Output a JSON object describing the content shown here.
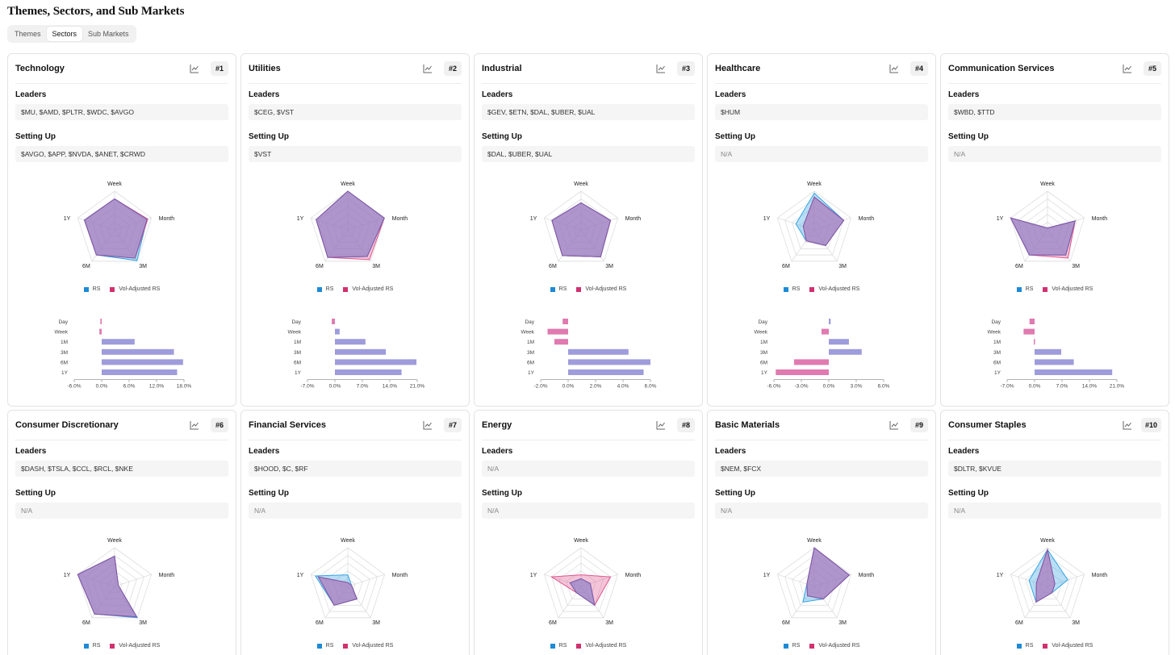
{
  "page": {
    "title": "Themes, Sectors, and Sub Markets"
  },
  "tabs": [
    {
      "label": "Themes",
      "active": false
    },
    {
      "label": "Sectors",
      "active": true
    },
    {
      "label": "Sub Markets",
      "active": false
    }
  ],
  "labels": {
    "leaders": "Leaders",
    "setting_up": "Setting Up"
  },
  "legend": {
    "rs": "RS",
    "vol_rs": "Vol-Adjusted RS"
  },
  "colors": {
    "rs": "#35a4e6",
    "vol_rs": "#e0558f",
    "bar_pos": "#9e9cdb",
    "bar_neg": "#e07ab0",
    "radar_fill": "#9b7fc6"
  },
  "radar_axes": [
    "Week",
    "Month",
    "3M",
    "6M",
    "1Y"
  ],
  "bar_periods": [
    "Day",
    "Week",
    "1M",
    "3M",
    "6M",
    "1Y"
  ],
  "chart_data": [
    {
      "type": "radar+bar",
      "title": "Technology",
      "rank": "#1",
      "leaders": "$MU, $AMD, $PLTR, $WDC, $AVGO",
      "setting_up": "$AVGO, $APP, $NVDA, $ANET, $CRWD",
      "radar_rs": [
        0.8,
        0.88,
        0.98,
        0.8,
        0.82
      ],
      "radar_vol": [
        0.8,
        0.9,
        0.9,
        0.8,
        0.82
      ],
      "bars": [
        -0.3,
        -0.5,
        7.2,
        15.8,
        17.8,
        16.5
      ],
      "xticks": [
        "-6.0%",
        "0.0%",
        "6.0%",
        "12.0%",
        "18.0%"
      ],
      "xlim": [
        -6,
        18
      ]
    },
    {
      "type": "radar+bar",
      "title": "Utilities",
      "rank": "#2",
      "leaders": "$CEG, $VST",
      "setting_up": "$VST",
      "radar_rs": [
        1.0,
        0.99,
        0.85,
        0.88,
        0.86
      ],
      "radar_vol": [
        1.0,
        0.99,
        0.95,
        0.88,
        0.86
      ],
      "bars": [
        -0.8,
        1.2,
        7.8,
        13.0,
        20.8,
        17.0
      ],
      "xticks": [
        "-7.0%",
        "0.0%",
        "7.0%",
        "14.0%",
        "21.0%"
      ],
      "xlim": [
        -7,
        21
      ]
    },
    {
      "type": "radar+bar",
      "title": "Industrial",
      "rank": "#3",
      "leaders": "$GEV, $ETN, $DAL, $UBER, $UAL",
      "setting_up": "$DAL, $UBER, $UAL",
      "radar_rs": [
        0.7,
        0.8,
        0.86,
        0.82,
        0.79
      ],
      "radar_vol": [
        0.7,
        0.8,
        0.86,
        0.82,
        0.79
      ],
      "bars": [
        -0.4,
        -1.5,
        -1.0,
        4.4,
        6.0,
        5.5
      ],
      "xticks": [
        "-2.0%",
        "0.0%",
        "2.0%",
        "4.0%",
        "6.0%"
      ],
      "xlim": [
        -2,
        6
      ]
    },
    {
      "type": "radar+bar",
      "title": "Healthcare",
      "rank": "#4",
      "leaders": "$HUM",
      "setting_up": "N/A",
      "radar_rs": [
        0.95,
        0.8,
        0.5,
        0.35,
        0.5
      ],
      "radar_vol": [
        0.85,
        0.8,
        0.5,
        0.35,
        0.3
      ],
      "bars": [
        0.2,
        -0.8,
        2.2,
        3.6,
        -3.8,
        -5.8
      ],
      "xticks": [
        "-6.0%",
        "-3.0%",
        "0.0%",
        "3.0%",
        "6.0%"
      ],
      "xlim": [
        -6,
        6
      ]
    },
    {
      "type": "radar+bar",
      "title": "Communication Services",
      "rank": "#5",
      "leaders": "$WBD, $TTD",
      "setting_up": "N/A",
      "radar_rs": [
        0.05,
        0.75,
        0.8,
        0.8,
        1.0
      ],
      "radar_vol": [
        0.05,
        0.75,
        0.9,
        0.8,
        1.0
      ],
      "bars": [
        -1.3,
        -2.8,
        -0.2,
        6.8,
        10.0,
        19.8
      ],
      "xticks": [
        "-7.0%",
        "0.0%",
        "7.0%",
        "14.0%",
        "21.0%"
      ],
      "xlim": [
        -7,
        21
      ]
    },
    {
      "type": "radar+bar",
      "title": "Consumer Discretionary",
      "rank": "#6",
      "leaders": "$DASH, $TSLA, $CCL, $RCL, $NKE",
      "setting_up": "N/A",
      "radar_rs": [
        0.78,
        0.1,
        1.0,
        0.88,
        1.0
      ],
      "radar_vol": [
        0.78,
        0.1,
        0.97,
        0.88,
        1.0
      ],
      "bars": [],
      "xticks": [],
      "xlim": [
        0,
        1
      ]
    },
    {
      "type": "radar+bar",
      "title": "Financial Services",
      "rank": "#7",
      "leaders": "$HOOD, $C, $RF",
      "setting_up": "N/A",
      "radar_rs": [
        0.3,
        0.1,
        0.4,
        0.6,
        0.88
      ],
      "radar_vol": [
        0.1,
        0.1,
        0.4,
        0.6,
        0.8
      ],
      "bars": [],
      "xticks": [],
      "xlim": [
        0,
        1
      ]
    },
    {
      "type": "radar+bar",
      "title": "Energy",
      "rank": "#8",
      "leaders": "N/A",
      "setting_up": "N/A",
      "radar_rs": [
        0.2,
        0.25,
        0.6,
        0.2,
        0.3
      ],
      "radar_vol": [
        0.3,
        0.8,
        0.6,
        0.2,
        0.8
      ],
      "bars": [],
      "xticks": [],
      "xlim": [
        0,
        1
      ]
    },
    {
      "type": "radar+bar",
      "title": "Basic Materials",
      "rank": "#9",
      "leaders": "$NEM, $FCX",
      "setting_up": "N/A",
      "radar_rs": [
        1.0,
        0.95,
        0.4,
        0.5,
        0.2
      ],
      "radar_vol": [
        1.0,
        0.95,
        0.4,
        0.3,
        0.2
      ],
      "bars": [],
      "xticks": [],
      "xlim": [
        0,
        1
      ]
    },
    {
      "type": "radar+bar",
      "title": "Consumer Staples",
      "rank": "#10",
      "leaders": "$DLTR, $KVUE",
      "setting_up": "N/A",
      "radar_rs": [
        0.95,
        0.55,
        0.2,
        0.5,
        0.5
      ],
      "radar_vol": [
        0.95,
        0.2,
        0.2,
        0.5,
        0.3
      ],
      "bars": [],
      "xticks": [],
      "xlim": [
        0,
        1
      ]
    }
  ]
}
